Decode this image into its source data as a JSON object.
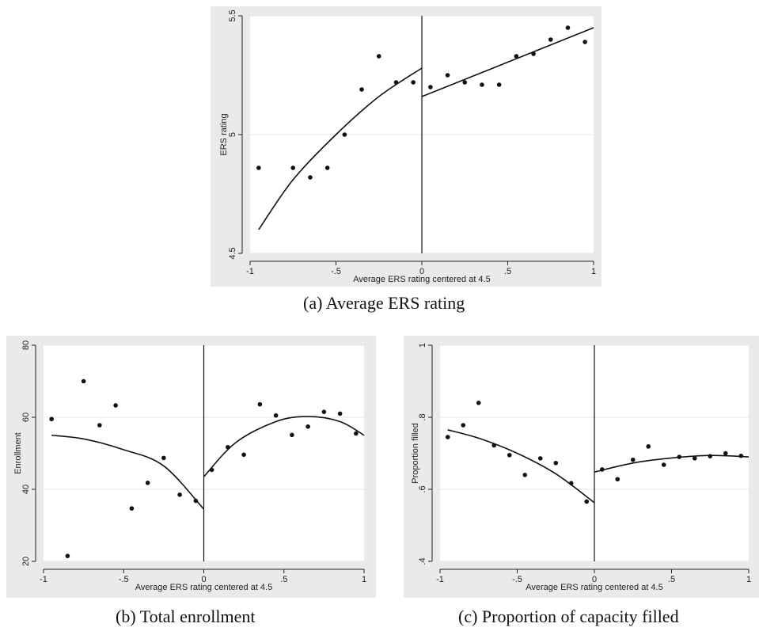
{
  "captions": [
    "(a)  Average ERS rating",
    "(b) Total enrollment",
    "(c) Proportion of capacity filled"
  ],
  "chart_data": [
    {
      "type": "scatter",
      "title": "",
      "caption": "(a)  Average ERS rating",
      "xlabel": "Average ERS rating centered at 4.5",
      "ylabel": "ERS rating",
      "xlim": [
        -1,
        1
      ],
      "ylim": [
        4.5,
        5.5
      ],
      "x_ticks": [
        -1,
        -0.5,
        0,
        0.5,
        1
      ],
      "x_tick_labels": [
        "-1",
        "-.5",
        "0",
        ".5",
        "1"
      ],
      "y_ticks": [
        4.5,
        5,
        5.5
      ],
      "y_tick_labels": [
        "4.5",
        "5",
        "5.5"
      ],
      "grid": true,
      "cutoff": 0,
      "points": [
        [
          -0.95,
          4.86
        ],
        [
          -0.75,
          4.86
        ],
        [
          -0.65,
          4.82
        ],
        [
          -0.55,
          4.86
        ],
        [
          -0.45,
          5.0
        ],
        [
          -0.35,
          5.19
        ],
        [
          -0.25,
          5.33
        ],
        [
          -0.15,
          5.22
        ],
        [
          -0.05,
          5.22
        ],
        [
          0.05,
          5.2
        ],
        [
          0.15,
          5.25
        ],
        [
          0.25,
          5.22
        ],
        [
          0.35,
          5.21
        ],
        [
          0.45,
          5.21
        ],
        [
          0.55,
          5.33
        ],
        [
          0.65,
          5.34
        ],
        [
          0.75,
          5.4
        ],
        [
          0.85,
          5.45
        ],
        [
          0.95,
          5.39
        ]
      ],
      "fit_left": [
        [
          -0.95,
          4.6
        ],
        [
          -0.75,
          4.81
        ],
        [
          -0.5,
          5.0
        ],
        [
          -0.25,
          5.16
        ],
        [
          0,
          5.28
        ]
      ],
      "fit_right": [
        [
          0,
          5.16
        ],
        [
          1,
          5.45
        ]
      ]
    },
    {
      "type": "scatter",
      "title": "",
      "caption": "(b) Total enrollment",
      "xlabel": "Average ERS rating centered at 4.5",
      "ylabel": "Enrollment",
      "xlim": [
        -1,
        1
      ],
      "ylim": [
        20,
        80
      ],
      "x_ticks": [
        -1,
        -0.5,
        0,
        0.5,
        1
      ],
      "x_tick_labels": [
        "-1",
        "-.5",
        "0",
        ".5",
        "1"
      ],
      "y_ticks": [
        20,
        40,
        60,
        80
      ],
      "y_tick_labels": [
        "20",
        "40",
        "60",
        "80"
      ],
      "grid": true,
      "cutoff": 0,
      "points": [
        [
          -0.95,
          59.5
        ],
        [
          -0.85,
          21.5
        ],
        [
          -0.75,
          70
        ],
        [
          -0.65,
          57.8
        ],
        [
          -0.55,
          63.3
        ],
        [
          -0.45,
          34.7
        ],
        [
          -0.35,
          41.8
        ],
        [
          -0.25,
          48.7
        ],
        [
          -0.15,
          38.5
        ],
        [
          -0.05,
          36.8
        ],
        [
          0.05,
          45.4
        ],
        [
          0.15,
          51.7
        ],
        [
          0.25,
          49.6
        ],
        [
          0.35,
          63.6
        ],
        [
          0.45,
          60.5
        ],
        [
          0.55,
          55.1
        ],
        [
          0.65,
          57.4
        ],
        [
          0.75,
          61.5
        ],
        [
          0.85,
          61
        ],
        [
          0.95,
          55.5
        ]
      ],
      "fit_left": [
        [
          -0.95,
          55
        ],
        [
          -0.75,
          54
        ],
        [
          -0.5,
          51
        ],
        [
          -0.25,
          46.5
        ],
        [
          0,
          34.5
        ]
      ],
      "fit_right": [
        [
          0,
          43.5
        ],
        [
          0.2,
          53
        ],
        [
          0.45,
          58.8
        ],
        [
          0.65,
          60.2
        ],
        [
          0.85,
          58.8
        ],
        [
          1,
          55
        ]
      ]
    },
    {
      "type": "scatter",
      "title": "",
      "caption": "(c) Proportion of capacity filled",
      "xlabel": "Average ERS rating centered at 4.5",
      "ylabel": "Proportion filled",
      "xlim": [
        -1,
        1
      ],
      "ylim": [
        0.4,
        1
      ],
      "x_ticks": [
        -1,
        -0.5,
        0,
        0.5,
        1
      ],
      "x_tick_labels": [
        "-1",
        "-.5",
        "0",
        ".5",
        "1"
      ],
      "y_ticks": [
        0.4,
        0.6,
        0.8,
        1
      ],
      "y_tick_labels": [
        ".4",
        ".6",
        ".8",
        "1"
      ],
      "grid": true,
      "cutoff": 0,
      "points": [
        [
          -0.95,
          0.745
        ],
        [
          -0.85,
          0.778
        ],
        [
          -0.75,
          0.84
        ],
        [
          -0.65,
          0.722
        ],
        [
          -0.55,
          0.695
        ],
        [
          -0.45,
          0.64
        ],
        [
          -0.35,
          0.686
        ],
        [
          -0.25,
          0.673
        ],
        [
          -0.15,
          0.617
        ],
        [
          -0.05,
          0.566
        ],
        [
          0.05,
          0.655
        ],
        [
          0.15,
          0.628
        ],
        [
          0.25,
          0.682
        ],
        [
          0.35,
          0.719
        ],
        [
          0.45,
          0.668
        ],
        [
          0.55,
          0.69
        ],
        [
          0.65,
          0.686
        ],
        [
          0.75,
          0.692
        ],
        [
          0.85,
          0.7
        ],
        [
          0.95,
          0.693
        ]
      ],
      "fit_left": [
        [
          -0.95,
          0.765
        ],
        [
          -0.75,
          0.742
        ],
        [
          -0.5,
          0.7
        ],
        [
          -0.25,
          0.643
        ],
        [
          0,
          0.563
        ]
      ],
      "fit_right": [
        [
          0,
          0.648
        ],
        [
          0.25,
          0.673
        ],
        [
          0.5,
          0.687
        ],
        [
          0.75,
          0.694
        ],
        [
          1,
          0.69
        ]
      ]
    }
  ]
}
